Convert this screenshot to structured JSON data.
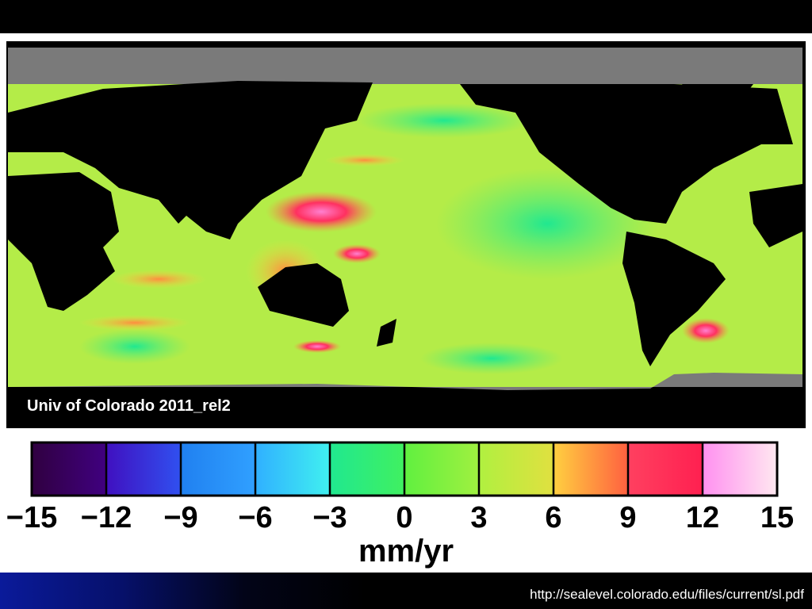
{
  "map": {
    "credit": "Univ of Colorado 2011_rel2"
  },
  "colorbar": {
    "ticks": [
      {
        "value": -15,
        "label": "−15"
      },
      {
        "value": -12,
        "label": "−12"
      },
      {
        "value": -9,
        "label": "−9"
      },
      {
        "value": -6,
        "label": "−6"
      },
      {
        "value": -3,
        "label": "−3"
      },
      0,
      3,
      6,
      9,
      12,
      15
    ],
    "unit": "mm/yr"
  },
  "footer": {
    "url": "http://sealevel.colorado.edu/files/current/sl.pdf"
  }
}
